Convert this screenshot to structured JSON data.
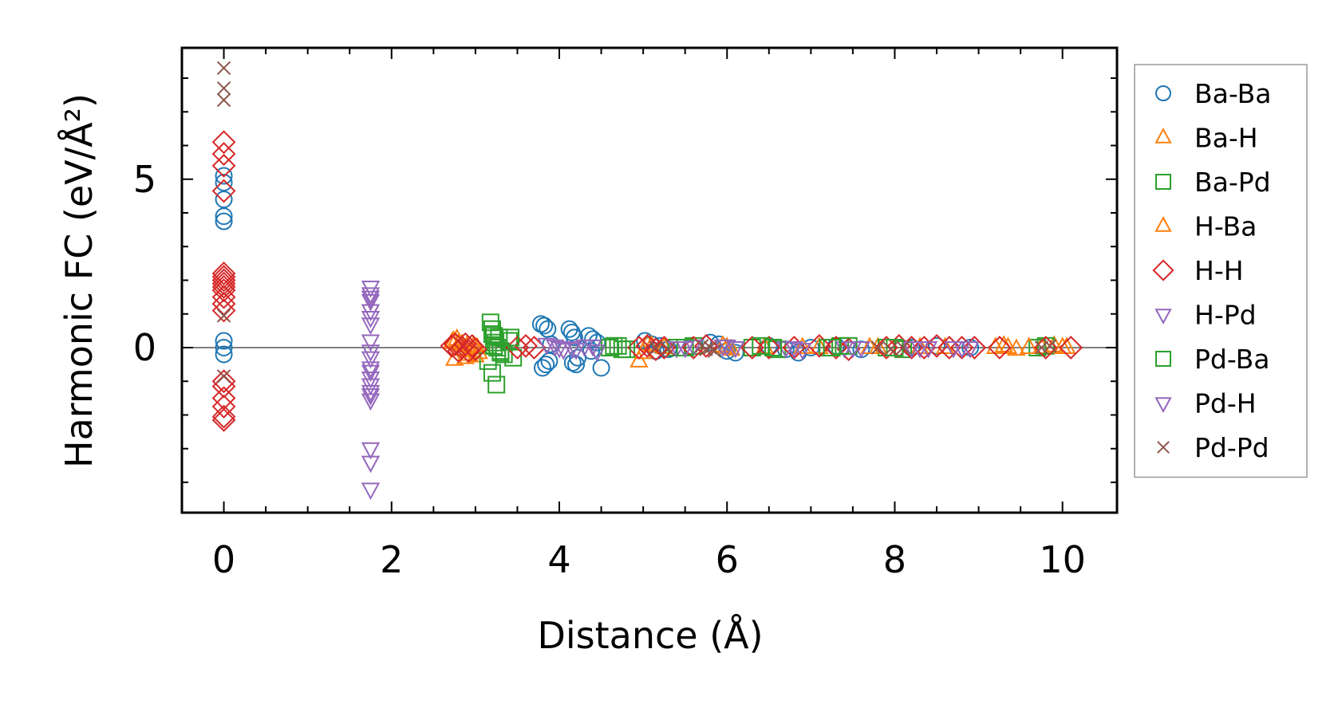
{
  "chart_data": {
    "type": "scatter",
    "title": "",
    "xlabel": "Distance (Å)",
    "ylabel": "Harmonic FC (eV/Å²)",
    "xlim": [
      -0.5,
      10.65
    ],
    "ylim": [
      -4.9,
      8.9
    ],
    "xticks": [
      0,
      2,
      4,
      6,
      8,
      10
    ],
    "yticks": [
      0,
      5
    ],
    "zero_line": true,
    "grid": false,
    "legend_position": "outside-right",
    "series": [
      {
        "name": "Ba-Ba",
        "marker": "circle",
        "color": "#1f77b4",
        "x": [
          0,
          0,
          0,
          0,
          0,
          0,
          0,
          0,
          3.78,
          3.82,
          3.86,
          3.9,
          3.8,
          3.84,
          3.88,
          4.12,
          4.15,
          4.18,
          4.22,
          4.16,
          4.2,
          4.35,
          4.4,
          4.45,
          4.5,
          4.38,
          5.02,
          5.1,
          5.2,
          5.3,
          5.15,
          5.8,
          5.9,
          6.0,
          6.1,
          6.5,
          6.7,
          6.85,
          7.0,
          7.3,
          7.6,
          8.2,
          8.5,
          8.9
        ],
        "y": [
          5.1,
          4.9,
          4.4,
          3.9,
          3.75,
          0.2,
          0.0,
          -0.2,
          0.7,
          0.65,
          0.55,
          0.1,
          -0.6,
          -0.5,
          -0.4,
          0.55,
          0.45,
          0.3,
          -0.3,
          -0.45,
          -0.5,
          0.35,
          0.25,
          0.15,
          -0.6,
          -0.1,
          0.2,
          0.1,
          0.05,
          -0.05,
          -0.1,
          0.15,
          0.1,
          -0.1,
          -0.15,
          0.05,
          -0.05,
          -0.15,
          0.0,
          0.05,
          -0.05,
          0.0,
          0.05,
          0.0
        ]
      },
      {
        "name": "Ba-H",
        "marker": "triangle-up",
        "color": "#ff7f0e",
        "x": [
          2.72,
          2.78,
          2.84,
          2.9,
          2.96,
          3.02,
          2.75,
          2.88,
          3.0,
          4.95,
          5.05,
          5.25,
          5.95,
          6.05,
          6.45,
          7.1,
          7.8,
          8.3,
          9.2,
          9.3,
          9.45,
          9.75,
          9.9,
          10.05
        ],
        "y": [
          0.15,
          0.25,
          0.1,
          0.05,
          -0.1,
          0.0,
          -0.35,
          -0.3,
          -0.25,
          -0.4,
          0.1,
          0.0,
          0.05,
          -0.05,
          0.0,
          0.0,
          0.0,
          0.0,
          0.0,
          0.05,
          -0.05,
          0.0,
          0.05,
          0.0
        ]
      },
      {
        "name": "Ba-Pd",
        "marker": "square",
        "color": "#2ca02c",
        "x": [
          3.18,
          3.2,
          3.22,
          3.24,
          3.26,
          3.3,
          3.34,
          3.4,
          3.45,
          3.2,
          3.25,
          3.15,
          3.22,
          3.28,
          4.6,
          4.7,
          4.8,
          5.4,
          5.6,
          6.3,
          6.6,
          7.2,
          7.35,
          7.9,
          8.1,
          9.7,
          9.8
        ],
        "y": [
          0.75,
          0.55,
          0.35,
          0.15,
          0.0,
          -0.1,
          -0.2,
          0.2,
          -0.3,
          -0.75,
          -1.1,
          -0.4,
          0.05,
          0.3,
          0.0,
          0.05,
          -0.05,
          0.0,
          0.05,
          0.0,
          -0.05,
          0.0,
          0.05,
          0.0,
          -0.05,
          0.0,
          0.05
        ]
      },
      {
        "name": "H-Ba",
        "marker": "triangle-up",
        "color": "#ff7f0e",
        "x": [
          2.74,
          2.8,
          2.86,
          2.92,
          2.98,
          3.04,
          5.0,
          5.1,
          6.0,
          6.9,
          7.7,
          8.6,
          9.35,
          9.6,
          10.0
        ],
        "y": [
          0.2,
          0.1,
          -0.05,
          -0.2,
          0.05,
          -0.15,
          -0.15,
          0.05,
          0.0,
          0.0,
          0.0,
          0.0,
          0.0,
          0.0,
          0.0
        ]
      },
      {
        "name": "H-H",
        "marker": "diamond",
        "color": "#d62728",
        "x": [
          0,
          0,
          0,
          0,
          0,
          0,
          0,
          0,
          0,
          0,
          0,
          0,
          0,
          0,
          0,
          0,
          0,
          0,
          0,
          2.72,
          2.76,
          2.8,
          2.84,
          2.88,
          2.92,
          2.96,
          3.0,
          3.5,
          3.6,
          3.7,
          4.95,
          5.05,
          5.15,
          5.25,
          5.6,
          5.75,
          6.3,
          6.5,
          6.8,
          7.1,
          7.3,
          7.45,
          7.9,
          8.05,
          8.2,
          8.35,
          8.5,
          8.65,
          8.8,
          8.95,
          9.25,
          9.8,
          10.1
        ],
        "y": [
          6.1,
          5.75,
          5.4,
          4.65,
          2.2,
          2.1,
          2.0,
          1.9,
          1.8,
          1.7,
          1.5,
          1.3,
          1.1,
          -1.0,
          -1.15,
          -1.5,
          -1.75,
          -2.05,
          -2.15,
          0.05,
          0.1,
          -0.1,
          0.0,
          0.1,
          -0.1,
          0.05,
          -0.05,
          0.0,
          0.05,
          0.0,
          0.0,
          0.05,
          -0.05,
          0.0,
          0.0,
          0.05,
          0.0,
          0.0,
          0.0,
          0.05,
          0.0,
          -0.05,
          0.0,
          0.05,
          0.0,
          0.0,
          0.05,
          0.0,
          0.0,
          0.0,
          0.0,
          0.0,
          0.0
        ]
      },
      {
        "name": "H-Pd",
        "marker": "triangle-down",
        "color": "#9467bd",
        "x": [
          1.75,
          1.75,
          1.75,
          1.75,
          1.75,
          1.75,
          1.75,
          1.75,
          1.75,
          1.75,
          1.75,
          1.75,
          1.75,
          1.75,
          1.75,
          1.75,
          3.85,
          3.95,
          4.05,
          4.15,
          4.3,
          4.45,
          5.4,
          5.6,
          5.95,
          6.1,
          6.7,
          6.9,
          7.4,
          7.6,
          8.2,
          8.4,
          8.7,
          8.9
        ],
        "y": [
          1.8,
          1.6,
          1.4,
          1.1,
          0.7,
          0.2,
          -0.1,
          -0.3,
          -0.6,
          -0.9,
          -1.1,
          -1.3,
          -1.55,
          -3.0,
          -3.4,
          -4.2,
          0.1,
          0.05,
          -0.05,
          0.0,
          0.05,
          -0.1,
          0.0,
          0.05,
          0.05,
          0.0,
          0.0,
          -0.05,
          0.0,
          0.0,
          0.0,
          0.0,
          0.0,
          0.0
        ]
      },
      {
        "name": "Pd-Ba",
        "marker": "square",
        "color": "#2ca02c",
        "x": [
          3.2,
          3.3,
          3.42,
          4.65,
          4.75,
          5.5,
          6.4,
          6.55,
          7.25,
          7.45,
          8.0
        ],
        "y": [
          0.4,
          -0.15,
          0.3,
          0.05,
          -0.05,
          0.0,
          0.05,
          0.0,
          0.0,
          0.05,
          0.0
        ]
      },
      {
        "name": "Pd-H",
        "marker": "triangle-down",
        "color": "#9467bd",
        "x": [
          1.75,
          1.75,
          1.75,
          1.75,
          4.0,
          4.2,
          4.4,
          5.5,
          6.0,
          6.8,
          7.5,
          8.3,
          8.8
        ],
        "y": [
          1.5,
          0.9,
          -0.7,
          -1.4,
          0.0,
          -0.05,
          0.05,
          0.0,
          0.05,
          0.0,
          0.0,
          0.0,
          0.0
        ]
      },
      {
        "name": "Pd-Pd",
        "marker": "x",
        "color": "#8c564b",
        "x": [
          0,
          0,
          0,
          0,
          0,
          5.15,
          5.3,
          5.7,
          5.75,
          5.8,
          5.85,
          7.8,
          7.95,
          8.1,
          9.75,
          9.85
        ],
        "y": [
          8.3,
          7.7,
          7.35,
          0.95,
          -0.85,
          0.0,
          -0.05,
          0.05,
          -0.05,
          0.0,
          -0.1,
          0.0,
          -0.05,
          0.0,
          0.0,
          0.05
        ]
      }
    ]
  }
}
